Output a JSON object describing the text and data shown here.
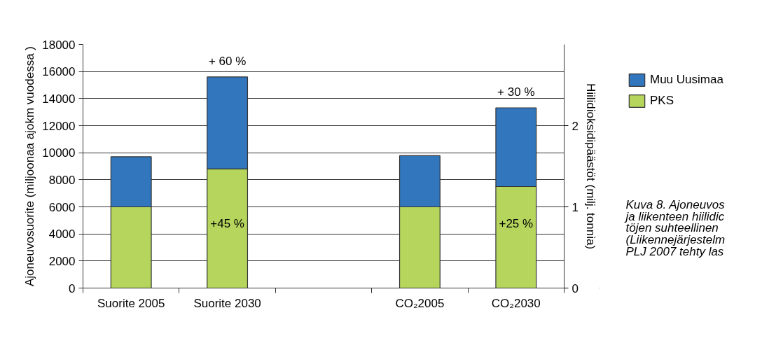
{
  "chart_data": {
    "type": "bar",
    "stacked": true,
    "ylabel": "Ajoneuvosuorite (miljoonaa ajokm vuodessa )",
    "y2label": "Hiilidioksidipäästöt (milj. tonnia)",
    "categories": [
      "Suorite 2005",
      "Suorite 2030",
      null,
      "CO₂2005",
      "CO₂2030"
    ],
    "series": [
      {
        "name": "PKS",
        "color": "#b5d55c",
        "values": [
          6000,
          8800,
          null,
          null,
          null
        ]
      },
      {
        "name": "Muu Uusimaa",
        "color": "#3277bd",
        "values": [
          3700,
          6800,
          null,
          null,
          null
        ]
      },
      {
        "color": "#b5d55c",
        "axis": "y2",
        "values": [
          null,
          null,
          null,
          1.0,
          1.25
        ]
      },
      {
        "color": "#3277bd",
        "axis": "y2",
        "values": [
          null,
          null,
          null,
          0.63,
          0.97
        ]
      }
    ],
    "ylim": [
      0,
      18000
    ],
    "yticks": [
      0,
      2000,
      4000,
      6000,
      8000,
      10000,
      12000,
      14000,
      16000,
      18000
    ],
    "y2lim": [
      0,
      3
    ],
    "y2ticks": [
      0,
      1,
      2
    ],
    "grid": "y",
    "legend": "top right",
    "annotations": [
      "+ 60 %",
      "+45 %",
      "+ 30 %",
      "+25 %",
      "Kuva 8. Ajoneuvos\nja liikenteen hiilidic\ntöjen suhteellinen\n(Liikennejärjestelm\nPLJ 2007 tehty las"
    ]
  }
}
